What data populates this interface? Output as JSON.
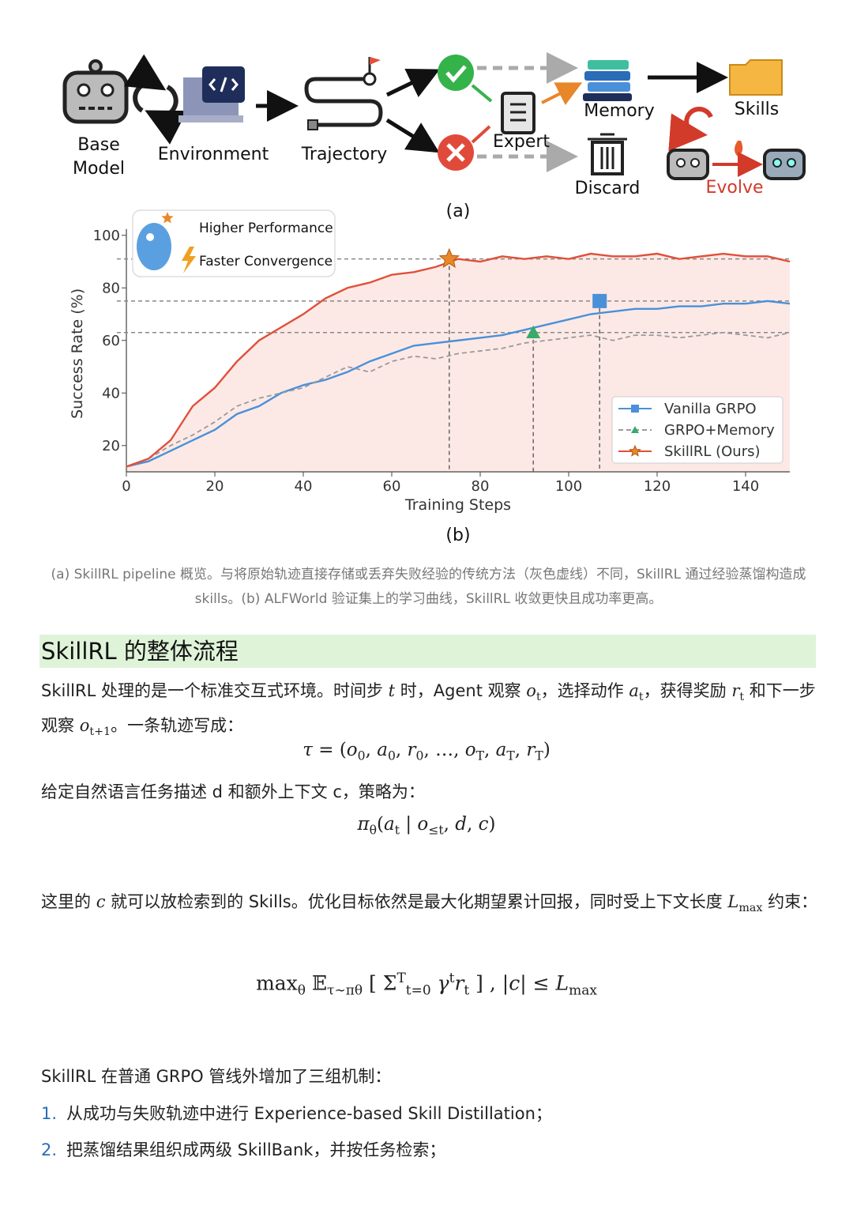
{
  "diagram": {
    "base_model": [
      "Base",
      "Model"
    ],
    "environment": "Environment",
    "trajectory": "Trajectory",
    "expert": "Expert",
    "memory": "Memory",
    "discard": "Discard",
    "skills": "Skills",
    "evolve": "Evolve",
    "panel_label": "(a)"
  },
  "chart_data": {
    "type": "line",
    "x_label": "Training Steps",
    "y_label": "Success Rate (%)",
    "panel_label": "(b)",
    "annotations": [
      "Higher Performance",
      "Faster Convergence"
    ],
    "x": [
      0,
      5,
      10,
      15,
      20,
      25,
      30,
      35,
      40,
      45,
      50,
      55,
      60,
      65,
      70,
      75,
      80,
      85,
      90,
      95,
      100,
      105,
      110,
      115,
      120,
      125,
      130,
      135,
      140,
      145,
      150
    ],
    "series": [
      {
        "name": "Vanilla GRPO",
        "color": "#4a90d9",
        "marker": "square",
        "dash": false,
        "values": [
          12,
          14,
          18,
          22,
          26,
          32,
          35,
          40,
          43,
          45,
          48,
          52,
          55,
          58,
          59,
          60,
          61,
          62,
          64,
          66,
          68,
          70,
          71,
          72,
          72,
          73,
          73,
          74,
          74,
          75,
          74
        ],
        "highlight": {
          "x": 107,
          "y": 75
        }
      },
      {
        "name": "GRPO+Memory",
        "color": "#9a9a9a",
        "marker": "triangle",
        "marker_color": "#3aaa6a",
        "dash": true,
        "values": [
          12,
          15,
          20,
          24,
          29,
          35,
          38,
          40,
          42,
          46,
          50,
          48,
          52,
          54,
          53,
          55,
          56,
          57,
          59,
          60,
          61,
          62,
          60,
          62,
          62,
          61,
          62,
          63,
          62,
          61,
          63
        ],
        "highlight": {
          "x": 92,
          "y": 63
        }
      },
      {
        "name": "SkillRL (Ours)",
        "color": "#e0503a",
        "marker": "star",
        "marker_color": "#e8882a",
        "dash": false,
        "fill": "#fbe3e0",
        "values": [
          12,
          15,
          22,
          35,
          42,
          52,
          60,
          65,
          70,
          76,
          80,
          82,
          85,
          86,
          88,
          91,
          90,
          92,
          91,
          92,
          91,
          93,
          92,
          92,
          93,
          91,
          92,
          93,
          92,
          92,
          90
        ],
        "highlight": {
          "x": 73,
          "y": 91
        }
      }
    ],
    "xlim": [
      0,
      150
    ],
    "ylim": [
      10,
      100
    ],
    "xticks": [
      0,
      20,
      40,
      60,
      80,
      100,
      120,
      140
    ],
    "yticks": [
      20,
      40,
      60,
      80,
      100
    ],
    "grid": false,
    "legend": "lower right"
  },
  "caption": "(a) SkillRL pipeline 概览。与将原始轨迹直接存储或丢弃失败经验的传统方法（灰色虚线）不同，SkillRL 通过经验蒸馏构造成skills。(b) ALFWorld 验证集上的学习曲线，SkillRL 收敛更快且成功率更高。",
  "section": {
    "heading": "SkillRL 的整体流程",
    "para1": [
      "SkillRL 处理的是一个标准交互式环境。时间步 ",
      {
        "i": "t"
      },
      " 时，Agent 观察 ",
      {
        "i": "o"
      },
      {
        "sub": "t"
      },
      "，选择动作 ",
      {
        "i": "a"
      },
      {
        "sub": "t"
      },
      "，获得奖励 ",
      {
        "i": "r"
      },
      {
        "sub": "t"
      },
      " 和下一步观察 ",
      {
        "i": "o"
      },
      {
        "sub": "t+1"
      },
      "。一条轨迹写成："
    ],
    "formula1": [
      {
        "i": "τ"
      },
      " = (",
      {
        "i": "o"
      },
      {
        "sub": "0"
      },
      ", ",
      {
        "i": "a"
      },
      {
        "sub": "0"
      },
      ", ",
      {
        "i": "r"
      },
      {
        "sub": "0"
      },
      ", …, ",
      {
        "i": "o"
      },
      {
        "sub": "T"
      },
      ", ",
      {
        "i": "a"
      },
      {
        "sub": "T"
      },
      ", ",
      {
        "i": "r"
      },
      {
        "sub": "T"
      },
      ")"
    ],
    "para2": [
      "给定自然语言任务描述 d 和额外上下文 c，策略为："
    ],
    "formula2": [
      {
        "i": "π"
      },
      {
        "sub": "θ"
      },
      "(",
      {
        "i": "a"
      },
      {
        "sub": "t"
      },
      " | ",
      {
        "i": "o"
      },
      {
        "sub": "≤t"
      },
      ", ",
      {
        "i": "d"
      },
      ", ",
      {
        "i": "c"
      },
      ")"
    ],
    "para3": [
      "这里的 ",
      {
        "i": "c"
      },
      " 就可以放检索到的 Skills。优化目标依然是最大化期望累计回报，同时受上下文长度 ",
      {
        "i": "L"
      },
      {
        "sub": "max"
      },
      " 约束："
    ],
    "formula3": [
      "max",
      {
        "sub": "θ"
      },
      " 𝔼",
      {
        "sub": "τ∼πθ"
      },
      " [ Σ",
      {
        "sup": "T"
      },
      {
        "sub": "t=0"
      },
      " ",
      {
        "i": "γ"
      },
      {
        "sup": "t"
      },
      {
        "i": "r"
      },
      {
        "sub": "t"
      },
      " ] ,        |",
      {
        "i": "c"
      },
      "| ≤ ",
      {
        "i": "L"
      },
      {
        "sub": "max"
      }
    ],
    "para4": [
      "SkillRL 在普通 GRPO 管线外增加了三组机制："
    ],
    "list": [
      {
        "marker": "1.",
        "text": "从成功与失败轨迹中进行 Experience-based Skill Distillation；"
      },
      {
        "marker": "2.",
        "text": "把蒸馏结果组织成两级 SkillBank，并按任务检索；"
      }
    ]
  }
}
